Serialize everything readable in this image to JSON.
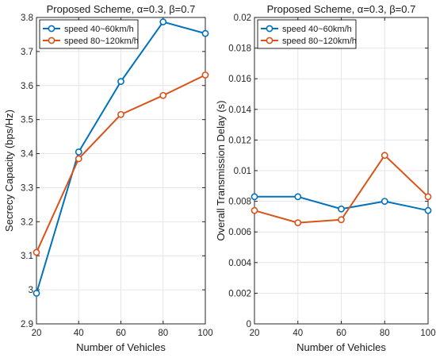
{
  "chart_data": [
    {
      "type": "line",
      "title": "Proposed Scheme, α=0.3, β=0.7",
      "xlabel": "Number of Vehicles",
      "ylabel": "Secrecy Capacity (bps/Hz)",
      "x": [
        20,
        40,
        60,
        80,
        100
      ],
      "xlim": [
        20,
        100
      ],
      "ylim": [
        2.9,
        3.8
      ],
      "xticks": [
        "20",
        "40",
        "60",
        "80",
        "100"
      ],
      "yticks": [
        "2.9",
        "3",
        "3.1",
        "3.2",
        "3.3",
        "3.4",
        "3.5",
        "3.6",
        "3.7",
        "3.8"
      ],
      "grid": true,
      "legend_position": "top-left",
      "series": [
        {
          "name": "speed 40~60km/h",
          "color": "#0072BD",
          "marker": "circle",
          "values": [
            2.99,
            3.405,
            3.612,
            3.787,
            3.753
          ]
        },
        {
          "name": "speed 80~120km/h",
          "color": "#D95319",
          "marker": "circle",
          "values": [
            3.11,
            3.385,
            3.515,
            3.571,
            3.631
          ]
        }
      ]
    },
    {
      "type": "line",
      "title": "Proposed Scheme, α=0.3, β=0.7",
      "xlabel": "Number of Vehicles",
      "ylabel": "Overall Transmission Delay (s)",
      "x": [
        20,
        40,
        60,
        80,
        100
      ],
      "xlim": [
        20,
        100
      ],
      "ylim": [
        0,
        0.02
      ],
      "xticks": [
        "20",
        "40",
        "60",
        "80",
        "100"
      ],
      "yticks": [
        "0",
        "0.002",
        "0.004",
        "0.006",
        "0.008",
        "0.01",
        "0.012",
        "0.014",
        "0.016",
        "0.018",
        "0.02"
      ],
      "grid": true,
      "legend_position": "top-left",
      "series": [
        {
          "name": "speed 40~60km/h",
          "color": "#0072BD",
          "marker": "circle",
          "values": [
            0.0083,
            0.0083,
            0.0075,
            0.008,
            0.0074
          ]
        },
        {
          "name": "speed 80~120km/h",
          "color": "#D95319",
          "marker": "circle",
          "values": [
            0.0074,
            0.0066,
            0.0068,
            0.011,
            0.0083
          ]
        }
      ]
    }
  ]
}
